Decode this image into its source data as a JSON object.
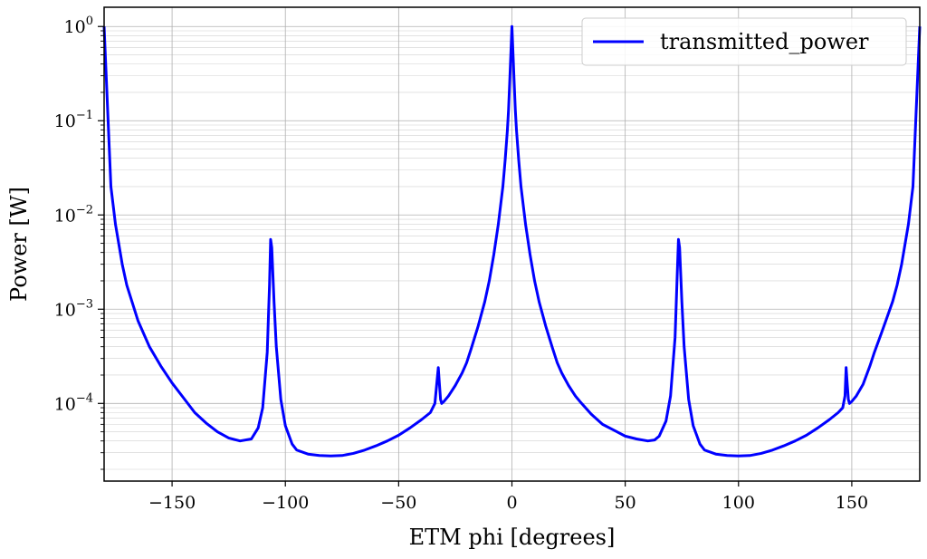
{
  "chart_data": {
    "type": "line",
    "xlabel": "ETM phi [degrees]",
    "ylabel": "Power [W]",
    "xlim": [
      -180,
      180
    ],
    "ylim": [
      1.5e-05,
      1.6
    ],
    "yscale": "log",
    "grid": true,
    "legend_position": "top-right",
    "x_ticks": [
      -150,
      -100,
      -50,
      0,
      50,
      100,
      150
    ],
    "x_tick_labels": [
      "−150",
      "−100",
      "−50",
      "0",
      "50",
      "100",
      "150"
    ],
    "y_ticks": [
      {
        "value": 1,
        "base": "10",
        "exp": "0"
      },
      {
        "value": 0.1,
        "base": "10",
        "exp": "−1"
      },
      {
        "value": 0.01,
        "base": "10",
        "exp": "−2"
      },
      {
        "value": 0.001,
        "base": "10",
        "exp": "−3"
      },
      {
        "value": 0.0001,
        "base": "10",
        "exp": "−4"
      }
    ],
    "series": [
      {
        "name": "transmitted_power",
        "color": "#0000ff",
        "x": [
          -180,
          -177,
          -175,
          -172,
          -170,
          -165,
          -160,
          -155,
          -150,
          -145,
          -140,
          -135,
          -130,
          -125,
          -120,
          -115,
          -112,
          -110,
          -108,
          -107,
          -106.5,
          -106,
          -105,
          -104,
          -102,
          -100,
          -97,
          -95,
          -90,
          -85,
          -80,
          -75,
          -70,
          -65,
          -60,
          -55,
          -50,
          -45,
          -40,
          -36,
          -34,
          -33,
          -32.5,
          -32,
          -31.5,
          -31,
          -30,
          -28,
          -25,
          -22,
          -20,
          -18,
          -15,
          -12,
          -10,
          -8,
          -6,
          -4,
          -3,
          -2,
          -1.5,
          -1,
          -0.5,
          0,
          0.5,
          1,
          1.5,
          2,
          3,
          4,
          6,
          8,
          10,
          12,
          15,
          18,
          20,
          22,
          25,
          28,
          30,
          35,
          40,
          45,
          50,
          55,
          60,
          63,
          65,
          68,
          70,
          72,
          73,
          73.5,
          74,
          75,
          76,
          78,
          80,
          83,
          85,
          90,
          95,
          100,
          105,
          110,
          115,
          120,
          125,
          130,
          135,
          140,
          144,
          146,
          147,
          147.5,
          148,
          148.5,
          149,
          150,
          152,
          155,
          158,
          160,
          163,
          165,
          168,
          170,
          172,
          175,
          177,
          180
        ],
        "y": [
          1.0,
          0.02,
          0.008,
          0.003,
          0.0018,
          0.00075,
          0.0004,
          0.00025,
          0.000165,
          0.000115,
          8e-05,
          6.2e-05,
          5e-05,
          4.3e-05,
          4e-05,
          4.2e-05,
          5.5e-05,
          9e-05,
          0.00035,
          0.0018,
          0.0055,
          0.0045,
          0.0012,
          0.0004,
          0.00011,
          5.8e-05,
          3.7e-05,
          3.2e-05,
          2.9e-05,
          2.8e-05,
          2.77e-05,
          2.8e-05,
          2.95e-05,
          3.2e-05,
          3.55e-05,
          4e-05,
          4.6e-05,
          5.5e-05,
          6.7e-05,
          8e-05,
          0.0001,
          0.00018,
          0.00024,
          0.00016,
          0.00011,
          0.0001,
          0.000105,
          0.00012,
          0.000155,
          0.00021,
          0.00027,
          0.00038,
          0.00065,
          0.0012,
          0.002,
          0.0038,
          0.008,
          0.02,
          0.038,
          0.08,
          0.13,
          0.25,
          0.5,
          1.0,
          0.5,
          0.25,
          0.13,
          0.08,
          0.038,
          0.02,
          0.008,
          0.0038,
          0.002,
          0.0012,
          0.00065,
          0.00038,
          0.00027,
          0.00021,
          0.000155,
          0.00012,
          0.000105,
          7.7e-05,
          6e-05,
          5.2e-05,
          4.5e-05,
          4.2e-05,
          4e-05,
          4.1e-05,
          4.5e-05,
          6.5e-05,
          0.00012,
          0.0005,
          0.0025,
          0.0055,
          0.0045,
          0.0012,
          0.0004,
          0.00011,
          5.8e-05,
          3.7e-05,
          3.2e-05,
          2.9e-05,
          2.8e-05,
          2.77e-05,
          2.8e-05,
          2.95e-05,
          3.2e-05,
          3.55e-05,
          4e-05,
          4.6e-05,
          5.5e-05,
          6.7e-05,
          8e-05,
          9e-05,
          0.00012,
          0.00024,
          0.00016,
          0.00011,
          0.0001,
          0.000105,
          0.00012,
          0.00016,
          0.00025,
          0.00035,
          0.00055,
          0.00075,
          0.0012,
          0.0018,
          0.003,
          0.008,
          0.02,
          1.0
        ]
      }
    ]
  }
}
